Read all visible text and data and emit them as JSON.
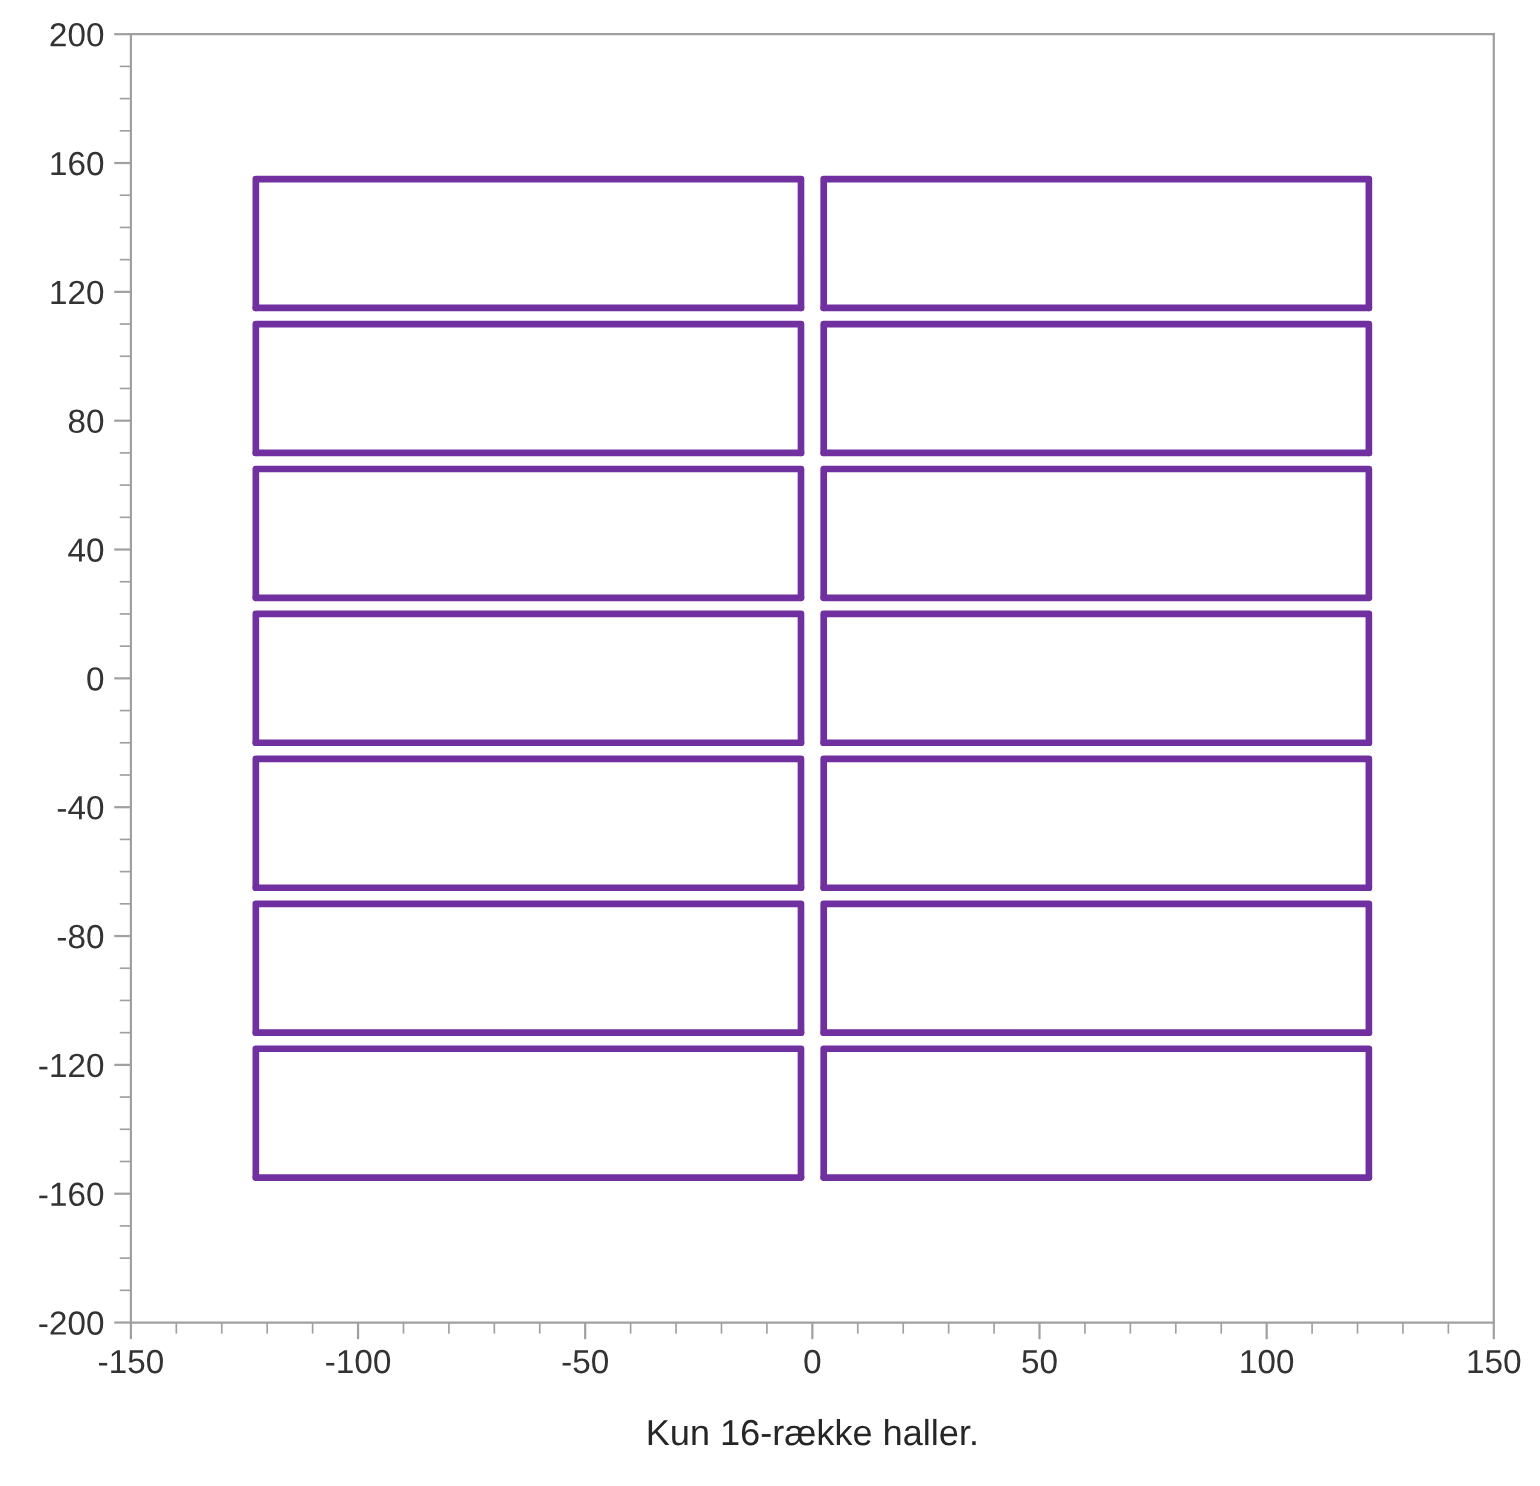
{
  "chart_data": {
    "type": "line",
    "xlabel": "Kun 16-række haller.",
    "xlim": [
      -150,
      150
    ],
    "xticks": [
      -150,
      -100,
      -50,
      0,
      50,
      100,
      150
    ],
    "ylim": [
      -200,
      200
    ],
    "yticks": [
      -200,
      -160,
      -120,
      -80,
      -40,
      0,
      40,
      80,
      120,
      160,
      200
    ],
    "grid": false,
    "legend": false,
    "marker": "none",
    "line_style": "solid",
    "series": [
      {
        "color": "#7030a0",
        "x": [
          -122.5,
          -122.5,
          -2.5,
          -2.5
        ],
        "values": [
          115,
          155,
          155,
          115
        ]
      },
      {
        "color": "#7030a0",
        "x": [
          -122.5,
          -2.5
        ],
        "values": [
          115,
          115
        ]
      },
      {
        "color": "#7030a0",
        "x": [
          2.5,
          2.5,
          122.5,
          122.5
        ],
        "values": [
          115,
          155,
          155,
          115
        ]
      },
      {
        "color": "#7030a0",
        "x": [
          2.5,
          122.5
        ],
        "values": [
          115,
          115
        ]
      },
      {
        "color": "#7030a0",
        "x": [
          -122.5,
          -122.5,
          -2.5,
          -2.5
        ],
        "values": [
          70,
          110,
          110,
          70
        ]
      },
      {
        "color": "#7030a0",
        "x": [
          -122.5,
          -2.5
        ],
        "values": [
          70,
          70
        ]
      },
      {
        "color": "#7030a0",
        "x": [
          2.5,
          2.5,
          122.5,
          122.5
        ],
        "values": [
          70,
          110,
          110,
          70
        ]
      },
      {
        "color": "#7030a0",
        "x": [
          2.5,
          122.5
        ],
        "values": [
          70,
          70
        ]
      },
      {
        "color": "#7030a0",
        "x": [
          -122.5,
          -122.5,
          -2.5,
          -2.5
        ],
        "values": [
          25,
          65,
          65,
          25
        ]
      },
      {
        "color": "#7030a0",
        "x": [
          -122.5,
          -2.5
        ],
        "values": [
          25,
          25
        ]
      },
      {
        "color": "#7030a0",
        "x": [
          2.5,
          2.5,
          122.5,
          122.5
        ],
        "values": [
          25,
          65,
          65,
          25
        ]
      },
      {
        "color": "#7030a0",
        "x": [
          2.5,
          122.5
        ],
        "values": [
          25,
          25
        ]
      },
      {
        "color": "#7030a0",
        "x": [
          -122.5,
          -122.5,
          -2.5,
          -2.5
        ],
        "values": [
          -20,
          20,
          20,
          -20
        ]
      },
      {
        "color": "#7030a0",
        "x": [
          -122.5,
          -2.5
        ],
        "values": [
          -20,
          -20
        ]
      },
      {
        "color": "#7030a0",
        "x": [
          2.5,
          2.5,
          122.5,
          122.5
        ],
        "values": [
          -20,
          20,
          20,
          -20
        ]
      },
      {
        "color": "#7030a0",
        "x": [
          2.5,
          122.5
        ],
        "values": [
          -20,
          -20
        ]
      },
      {
        "color": "#7030a0",
        "x": [
          -122.5,
          -122.5,
          -2.5,
          -2.5
        ],
        "values": [
          -65,
          -25,
          -25,
          -65
        ]
      },
      {
        "color": "#7030a0",
        "x": [
          -122.5,
          -2.5
        ],
        "values": [
          -65,
          -65
        ]
      },
      {
        "color": "#7030a0",
        "x": [
          2.5,
          2.5,
          122.5,
          122.5
        ],
        "values": [
          -65,
          -25,
          -25,
          -65
        ]
      },
      {
        "color": "#7030a0",
        "x": [
          2.5,
          122.5
        ],
        "values": [
          -65,
          -65
        ]
      },
      {
        "color": "#7030a0",
        "x": [
          -122.5,
          -122.5,
          -2.5,
          -2.5
        ],
        "values": [
          -110,
          -70,
          -70,
          -110
        ]
      },
      {
        "color": "#7030a0",
        "x": [
          -122.5,
          -2.5
        ],
        "values": [
          -110,
          -110
        ]
      },
      {
        "color": "#7030a0",
        "x": [
          2.5,
          2.5,
          122.5,
          122.5
        ],
        "values": [
          -110,
          -70,
          -70,
          -110
        ]
      },
      {
        "color": "#7030a0",
        "x": [
          2.5,
          122.5
        ],
        "values": [
          -110,
          -110
        ]
      },
      {
        "color": "#7030a0",
        "x": [
          -122.5,
          -122.5,
          -2.5,
          -2.5
        ],
        "values": [
          -155,
          -115,
          -115,
          -155
        ]
      },
      {
        "color": "#7030a0",
        "x": [
          -122.5,
          -2.5
        ],
        "values": [
          -155,
          -155
        ]
      },
      {
        "color": "#7030a0",
        "x": [
          2.5,
          2.5,
          122.5,
          122.5
        ],
        "values": [
          -155,
          -115,
          -115,
          -155
        ]
      },
      {
        "color": "#7030a0",
        "x": [
          2.5,
          122.5
        ],
        "values": [
          -155,
          -155
        ]
      }
    ]
  }
}
